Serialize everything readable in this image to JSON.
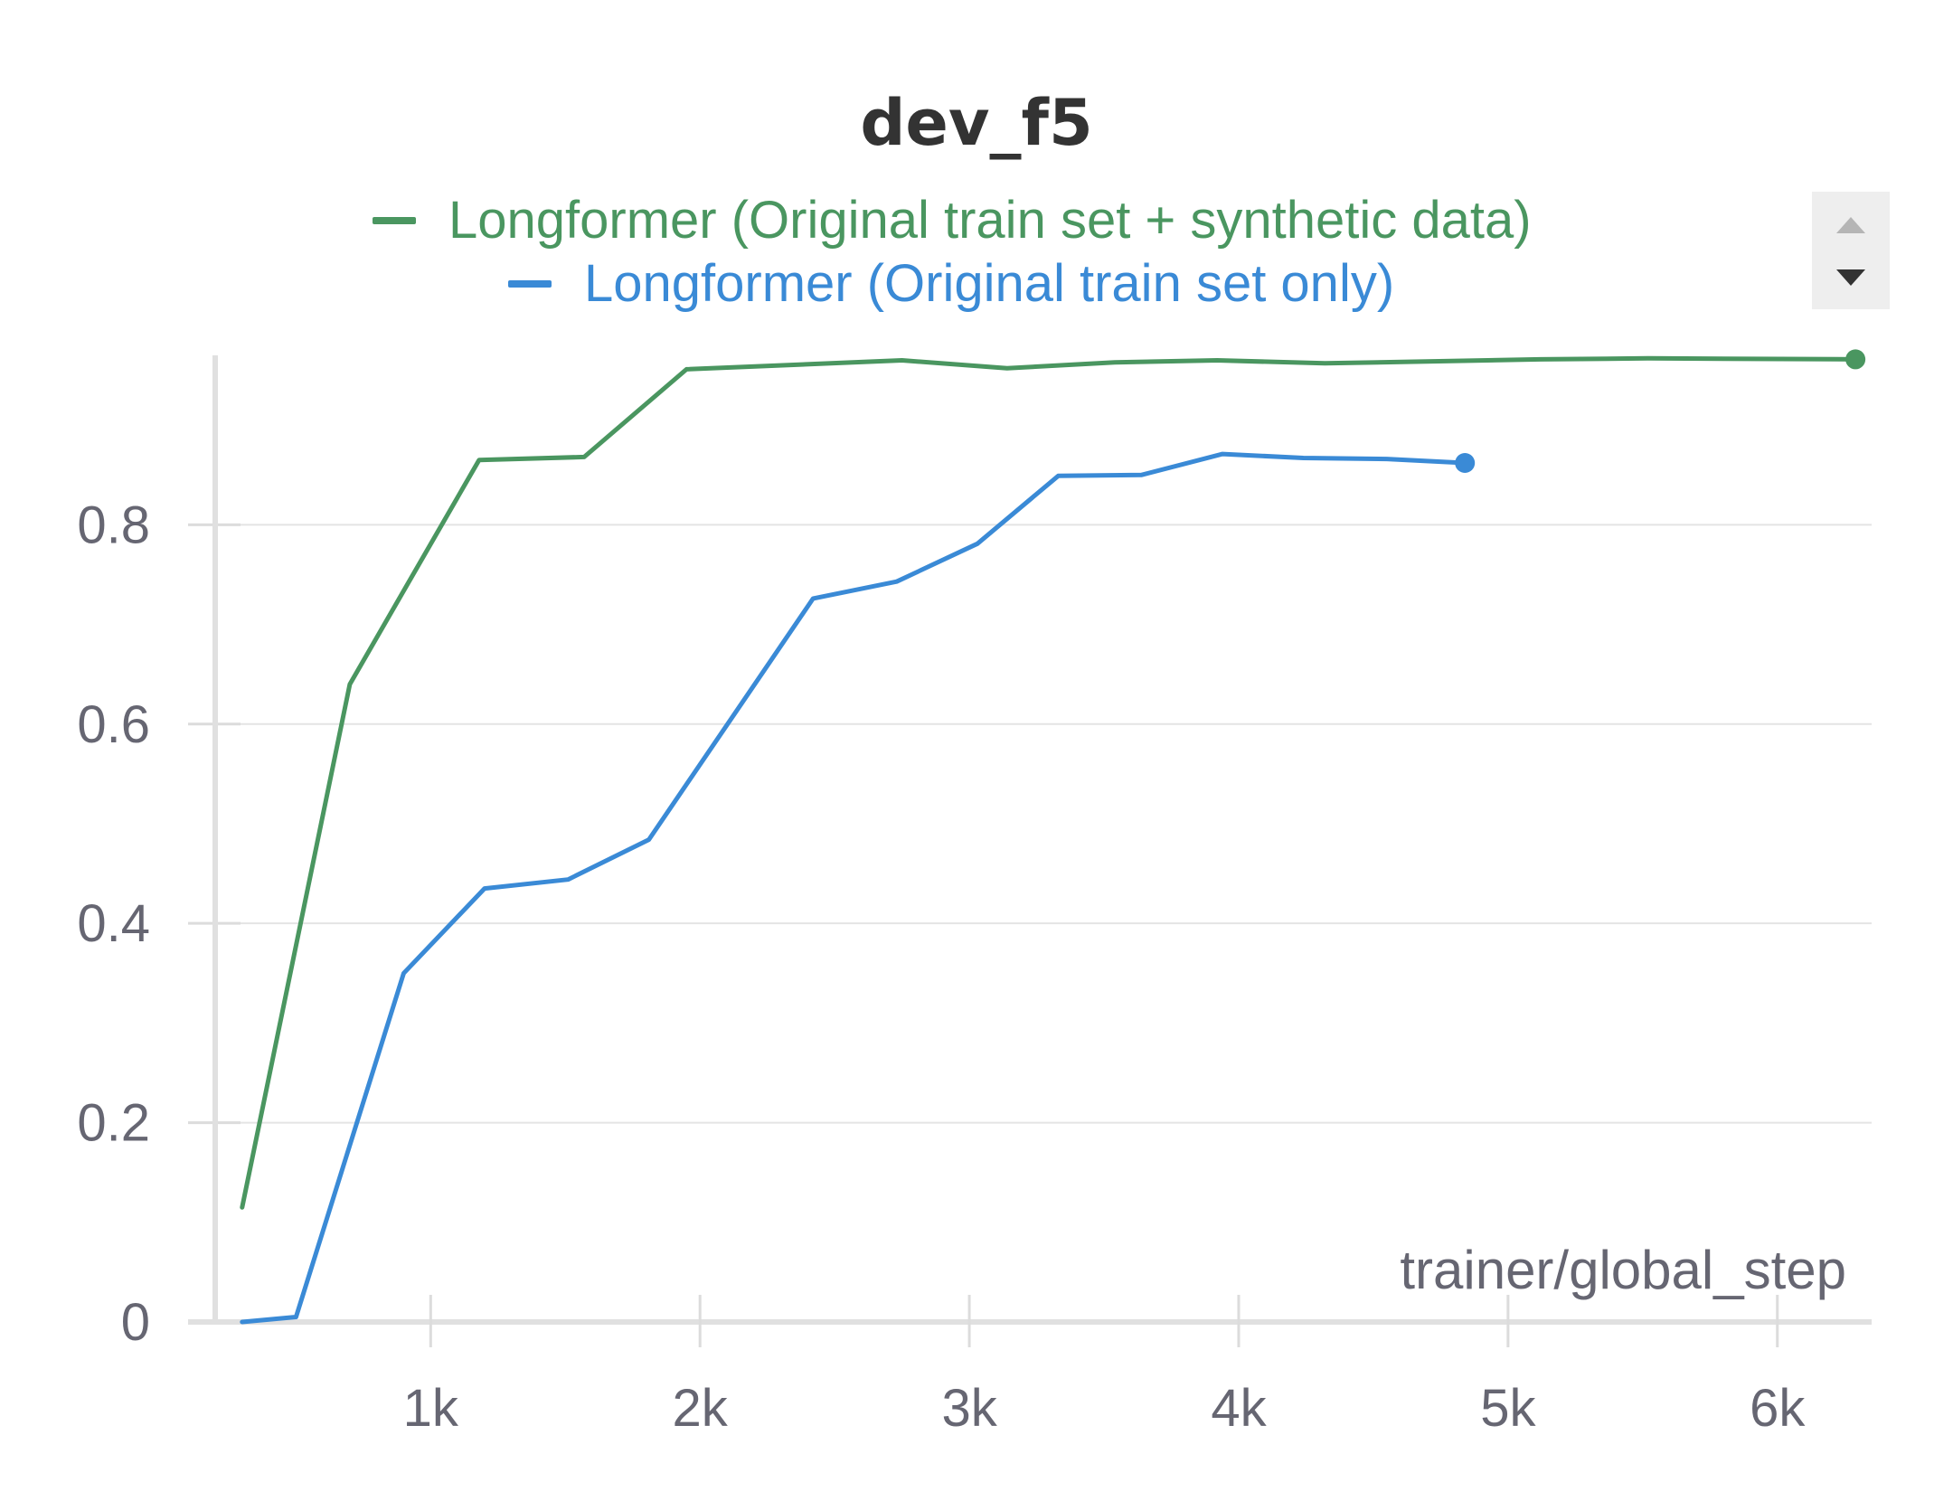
{
  "chart_data": {
    "type": "line",
    "title": "dev_f5",
    "xlabel": "trainer/global_step",
    "ylabel": "",
    "xlim": [
      200,
      6350
    ],
    "ylim": [
      0,
      0.97
    ],
    "x_ticks": [
      1000,
      2000,
      3000,
      4000,
      5000,
      6000
    ],
    "x_tick_labels": [
      "1k",
      "2k",
      "3k",
      "4k",
      "5k",
      "6k"
    ],
    "y_ticks": [
      0,
      0.2,
      0.4,
      0.6,
      0.8
    ],
    "y_tick_labels": [
      "0",
      "0.2",
      "0.4",
      "0.6",
      "0.8"
    ],
    "grid": "horizontal",
    "legend_position": "top",
    "series": [
      {
        "name": "Longformer (Original train set + synthetic data)",
        "color": "#4a9660",
        "x": [
          300,
          700,
          1180,
          1570,
          1950,
          2750,
          3140,
          3540,
          3920,
          4320,
          5120,
          5520,
          6290
        ],
        "y": [
          0.115,
          0.64,
          0.865,
          0.868,
          0.956,
          0.965,
          0.957,
          0.963,
          0.965,
          0.962,
          0.966,
          0.967,
          0.966
        ]
      },
      {
        "name": "Longformer (Original train set only)",
        "color": "#3a8ad6",
        "x": [
          300,
          500,
          900,
          1200,
          1510,
          1810,
          2420,
          2730,
          3030,
          3330,
          3640,
          3940,
          4240,
          4550,
          4840
        ],
        "y": [
          0.0,
          0.005,
          0.35,
          0.435,
          0.444,
          0.484,
          0.726,
          0.743,
          0.781,
          0.849,
          0.85,
          0.871,
          0.867,
          0.866,
          0.862
        ]
      }
    ]
  }
}
